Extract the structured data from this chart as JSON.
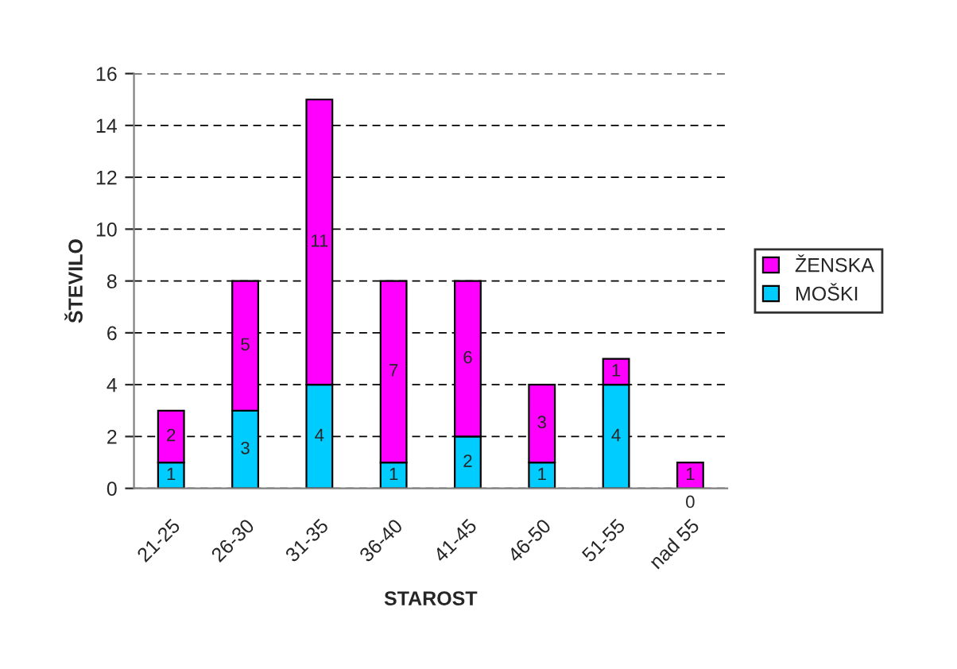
{
  "chart_data": {
    "type": "bar",
    "stacked": true,
    "xlabel": "STAROST",
    "ylabel": "ŠTEVILO",
    "categories": [
      "21-25",
      "26-30",
      "31-35",
      "36-40",
      "41-45",
      "46-50",
      "51-55",
      "nad 55"
    ],
    "series": [
      {
        "name": "MOŠKI",
        "color": "#00ccff",
        "values": [
          1,
          3,
          4,
          1,
          2,
          1,
          4,
          0
        ]
      },
      {
        "name": "ŽENSKA",
        "color": "#ff00ff",
        "values": [
          2,
          5,
          11,
          7,
          6,
          3,
          1,
          1
        ]
      }
    ],
    "ylim": [
      0,
      16
    ],
    "yticks": [
      0,
      2,
      4,
      6,
      8,
      10,
      12,
      14,
      16
    ],
    "grid": "y",
    "legend": "right",
    "data_labels": true
  }
}
